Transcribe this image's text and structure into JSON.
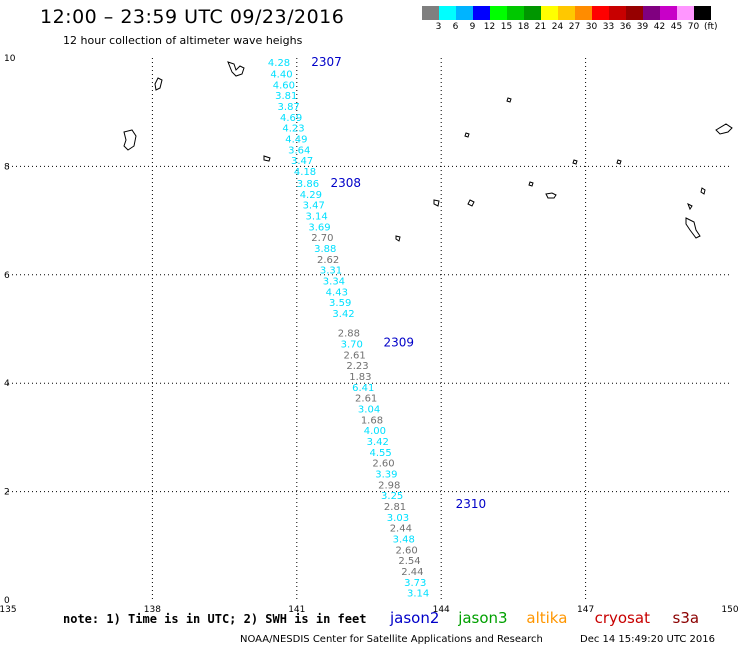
{
  "header": {
    "title": "12:00 – 23:59 UTC 09/23/2016",
    "subtitle": "12 hour collection of altimeter wave heighs"
  },
  "colorbar": {
    "colors": [
      "#7f7f7f",
      "#00ffff",
      "#00b4ff",
      "#0000ff",
      "#00ff00",
      "#00c800",
      "#009600",
      "#ffff00",
      "#ffc800",
      "#ff8c00",
      "#ff0000",
      "#c80000",
      "#960000",
      "#800080",
      "#c800c8",
      "#ff96ff",
      "#000000"
    ],
    "labels": [
      "3",
      "6",
      "9",
      "12",
      "15",
      "18",
      "21",
      "24",
      "27",
      "30",
      "33",
      "36",
      "39",
      "42",
      "45",
      "70"
    ],
    "unit": "(ft)"
  },
  "map": {
    "lon_min": 135,
    "lon_max": 150,
    "lat_min": 0,
    "lat_max": 10,
    "x_ticks": [
      "135",
      "138",
      "141",
      "144",
      "147",
      "150"
    ],
    "y_ticks": [
      "0",
      "2",
      "4",
      "6",
      "8",
      "10"
    ],
    "grid": "dotted",
    "track_colors": {
      "jason2": "#00e0ff",
      "other": "#707070",
      "label": "#0000c8"
    },
    "tracks": [
      {
        "label": "2307",
        "label_lon": 141.3,
        "label_lat": 9.85
      },
      {
        "label": "2308",
        "label_lon": 141.7,
        "label_lat": 7.62
      },
      {
        "label": "2309",
        "label_lon": 142.8,
        "label_lat": 4.68
      },
      {
        "label": "2310",
        "label_lon": 144.3,
        "label_lat": 1.7
      }
    ],
    "points": [
      {
        "v": "4.28",
        "lon": 140.4,
        "lat": 9.85,
        "c": "c"
      },
      {
        "v": "4.40",
        "lon": 140.45,
        "lat": 9.64,
        "c": "c"
      },
      {
        "v": "4.60",
        "lon": 140.5,
        "lat": 9.44,
        "c": "c"
      },
      {
        "v": "3.81",
        "lon": 140.55,
        "lat": 9.24,
        "c": "c"
      },
      {
        "v": "3.87",
        "lon": 140.6,
        "lat": 9.04,
        "c": "c"
      },
      {
        "v": "4.69",
        "lon": 140.65,
        "lat": 8.84,
        "c": "c"
      },
      {
        "v": "4.23",
        "lon": 140.7,
        "lat": 8.64,
        "c": "c"
      },
      {
        "v": "4.49",
        "lon": 140.76,
        "lat": 8.44,
        "c": "c"
      },
      {
        "v": "3.64",
        "lon": 140.82,
        "lat": 8.24,
        "c": "c"
      },
      {
        "v": "3.47",
        "lon": 140.88,
        "lat": 8.04,
        "c": "c"
      },
      {
        "v": "4.18",
        "lon": 140.94,
        "lat": 7.84,
        "c": "c"
      },
      {
        "v": "3.86",
        "lon": 141.0,
        "lat": 7.62,
        "c": "c"
      },
      {
        "v": "4.29",
        "lon": 141.06,
        "lat": 7.42,
        "c": "c"
      },
      {
        "v": "3.47",
        "lon": 141.12,
        "lat": 7.22,
        "c": "c"
      },
      {
        "v": "3.14",
        "lon": 141.18,
        "lat": 7.02,
        "c": "c"
      },
      {
        "v": "3.69",
        "lon": 141.24,
        "lat": 6.82,
        "c": "c"
      },
      {
        "v": "2.70",
        "lon": 141.3,
        "lat": 6.62,
        "c": "g"
      },
      {
        "v": "3.88",
        "lon": 141.36,
        "lat": 6.42,
        "c": "c"
      },
      {
        "v": "2.62",
        "lon": 141.42,
        "lat": 6.22,
        "c": "g"
      },
      {
        "v": "3.31",
        "lon": 141.48,
        "lat": 6.02,
        "c": "c"
      },
      {
        "v": "3.34",
        "lon": 141.54,
        "lat": 5.82,
        "c": "c"
      },
      {
        "v": "4.43",
        "lon": 141.6,
        "lat": 5.62,
        "c": "c"
      },
      {
        "v": "3.59",
        "lon": 141.67,
        "lat": 5.42,
        "c": "c"
      },
      {
        "v": "3.42",
        "lon": 141.74,
        "lat": 5.22,
        "c": "c"
      },
      {
        "v": "2.88",
        "lon": 141.85,
        "lat": 4.86,
        "c": "g"
      },
      {
        "v": "3.70",
        "lon": 141.91,
        "lat": 4.66,
        "c": "c"
      },
      {
        "v": "2.61",
        "lon": 141.97,
        "lat": 4.46,
        "c": "g"
      },
      {
        "v": "2.23",
        "lon": 142.03,
        "lat": 4.26,
        "c": "g"
      },
      {
        "v": "1.83",
        "lon": 142.09,
        "lat": 4.06,
        "c": "g"
      },
      {
        "v": "6.41",
        "lon": 142.15,
        "lat": 3.86,
        "c": "c"
      },
      {
        "v": "2.61",
        "lon": 142.21,
        "lat": 3.66,
        "c": "g"
      },
      {
        "v": "3.04",
        "lon": 142.27,
        "lat": 3.46,
        "c": "c"
      },
      {
        "v": "1.68",
        "lon": 142.33,
        "lat": 3.26,
        "c": "g"
      },
      {
        "v": "4.00",
        "lon": 142.39,
        "lat": 3.06,
        "c": "c"
      },
      {
        "v": "3.42",
        "lon": 142.45,
        "lat": 2.86,
        "c": "c"
      },
      {
        "v": "4.55",
        "lon": 142.51,
        "lat": 2.66,
        "c": "c"
      },
      {
        "v": "2.60",
        "lon": 142.57,
        "lat": 2.46,
        "c": "g"
      },
      {
        "v": "3.39",
        "lon": 142.63,
        "lat": 2.26,
        "c": "c"
      },
      {
        "v": "2.98",
        "lon": 142.69,
        "lat": 2.06,
        "c": "g"
      },
      {
        "v": "3.25",
        "lon": 142.75,
        "lat": 1.86,
        "c": "c"
      },
      {
        "v": "2.81",
        "lon": 142.81,
        "lat": 1.66,
        "c": "g"
      },
      {
        "v": "3.03",
        "lon": 142.87,
        "lat": 1.46,
        "c": "c"
      },
      {
        "v": "2.44",
        "lon": 142.93,
        "lat": 1.26,
        "c": "g"
      },
      {
        "v": "3.48",
        "lon": 142.99,
        "lat": 1.06,
        "c": "c"
      },
      {
        "v": "2.60",
        "lon": 143.05,
        "lat": 0.86,
        "c": "g"
      },
      {
        "v": "2.54",
        "lon": 143.11,
        "lat": 0.66,
        "c": "g"
      },
      {
        "v": "2.44",
        "lon": 143.17,
        "lat": 0.46,
        "c": "g"
      },
      {
        "v": "3.73",
        "lon": 143.23,
        "lat": 0.26,
        "c": "c"
      },
      {
        "v": "3.14",
        "lon": 143.29,
        "lat": 0.06,
        "c": "c"
      }
    ]
  },
  "footer": {
    "note": "note: 1) Time is in UTC; 2) SWH is in feet",
    "legend": [
      {
        "name": "jason2",
        "color": "#0000c8"
      },
      {
        "name": "jason3",
        "color": "#00a000"
      },
      {
        "name": "altika",
        "color": "#ff9600"
      },
      {
        "name": "cryosat",
        "color": "#c80000"
      },
      {
        "name": "s3a",
        "color": "#8b0000"
      }
    ],
    "credit": "NOAA/NESDIS Center for Satellite Applications and Research",
    "timestamp": "Dec 14 15:49:20 UTC 2016"
  }
}
